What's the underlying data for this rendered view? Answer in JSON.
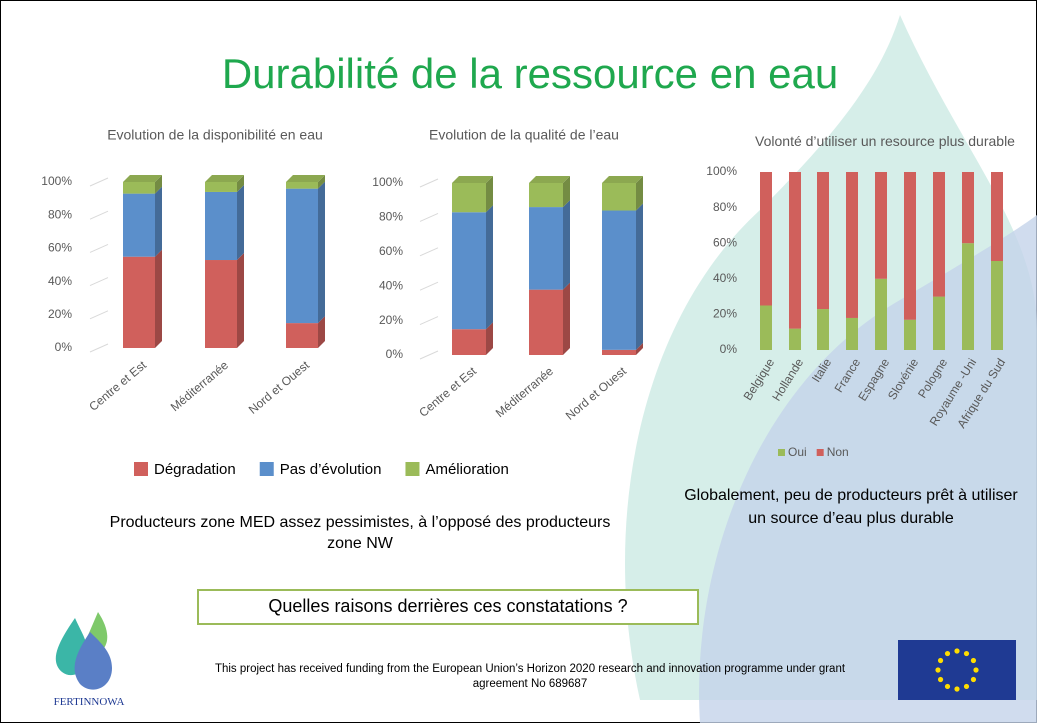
{
  "title": "Durabilité de la ressource en eau",
  "chart_data": [
    {
      "type": "bar",
      "stacked": true,
      "title": "Evolution de la disponibilité en eau",
      "categories": [
        "Centre et Est",
        "Méditerranée",
        "Nord et Ouest"
      ],
      "series": [
        {
          "name": "Dégradation",
          "color": "#d0605c",
          "values": [
            55,
            53,
            15
          ]
        },
        {
          "name": "Pas d’évolution",
          "color": "#5b8fcb",
          "values": [
            38,
            41,
            81
          ]
        },
        {
          "name": "Amélioration",
          "color": "#9bbb59",
          "values": [
            7,
            6,
            4
          ]
        }
      ],
      "ylim": [
        0,
        100
      ],
      "yticks": [
        {
          "value": 0,
          "label": "0%"
        },
        {
          "value": 20,
          "label": "20%"
        },
        {
          "value": 40,
          "label": "40%"
        },
        {
          "value": 60,
          "label": "60%"
        },
        {
          "value": 80,
          "label": "80%"
        },
        {
          "value": 100,
          "label": "100%"
        }
      ],
      "grid": true
    },
    {
      "type": "bar",
      "stacked": true,
      "title": "Evolution de la qualité de l’eau",
      "categories": [
        "Centre et Est",
        "Méditerranée",
        "Nord et Ouest"
      ],
      "series": [
        {
          "color": "#d0605c",
          "values": [
            15,
            38,
            3
          ]
        },
        {
          "color": "#5b8fcb",
          "values": [
            68,
            48,
            81
          ]
        },
        {
          "color": "#9bbb59",
          "values": [
            17,
            14,
            16
          ]
        }
      ],
      "ylim": [
        0,
        100
      ],
      "yticks": [
        {
          "value": 0,
          "label": "0%"
        },
        {
          "value": 20,
          "label": "20%"
        },
        {
          "value": 40,
          "label": "40%"
        },
        {
          "value": 60,
          "label": "60%"
        },
        {
          "value": 80,
          "label": "80%"
        },
        {
          "value": 100,
          "label": "100%"
        }
      ],
      "grid": true
    },
    {
      "type": "bar",
      "stacked": true,
      "title": "Volonté d’utiliser un resource plus durable",
      "categories": [
        "Belgique",
        "Hollande",
        "Italie",
        "France",
        "Espagne",
        "Slovénie",
        "Pologne",
        "Royaume -Uni",
        "Afrique du Sud"
      ],
      "series": [
        {
          "name": "Oui",
          "color": "#9bbb59",
          "values": [
            25,
            12,
            23,
            18,
            40,
            17,
            30,
            60,
            50
          ]
        },
        {
          "name": "Non",
          "color": "#d0605c",
          "values": [
            75,
            88,
            77,
            82,
            60,
            83,
            70,
            40,
            50
          ]
        }
      ],
      "ylim": [
        0,
        100
      ],
      "yticks": [
        {
          "value": 0,
          "label": "0%"
        },
        {
          "value": 20,
          "label": "20%"
        },
        {
          "value": 40,
          "label": "40%"
        },
        {
          "value": 60,
          "label": "60%"
        },
        {
          "value": 80,
          "label": "80%"
        },
        {
          "value": 100,
          "label": "100%"
        }
      ],
      "grid": false
    }
  ],
  "comment_left": "Producteurs zone MED assez pessimistes, à l’opposé des producteurs zone NW",
  "comment_right": "Globalement, peu de producteurs prêt à utiliser un source d’eau plus durable",
  "question": "Quelles raisons derrières ces constatations ?",
  "logo_text": "FERTINNOWA",
  "funding": "This project has received funding from the European Union’s Horizon 2020 research and innovation programme under grant agreement No 689687"
}
